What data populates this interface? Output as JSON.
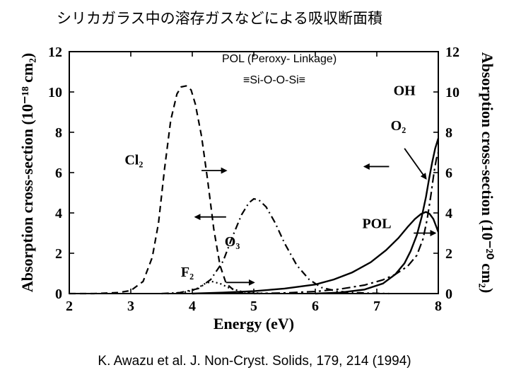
{
  "title": "シリカガラス中の溶存ガスなどによる吸収断面積",
  "annotation_box1": "POL (Peroxy- Linkage)",
  "annotation_box2": "≡Si-O-O-Si≡",
  "citation": "K. Awazu et al. J. Non-Cryst. Solids, 179, 214 (1994)",
  "chart": {
    "type": "line",
    "background_color": "#ffffff",
    "axis_color": "#000000",
    "axis_width": 2,
    "x": {
      "label": "Energy  (eV)",
      "lim": [
        2,
        8
      ],
      "ticks": [
        2,
        3,
        4,
        5,
        6,
        7,
        8
      ],
      "label_fontsize": 22,
      "tick_fontsize": 20
    },
    "y_left": {
      "label": "Absorption cross-section  (10⁻¹⁸ cm₂)",
      "lim": [
        0,
        12
      ],
      "ticks": [
        0,
        2,
        4,
        6,
        8,
        10,
        12
      ],
      "label_fontsize": 22,
      "tick_fontsize": 20
    },
    "y_right": {
      "label": "Absorption cross-section  (10⁻²⁰ cm₂)",
      "lim": [
        0,
        12
      ],
      "ticks": [
        0,
        2,
        4,
        6,
        8,
        10,
        12
      ],
      "label_fontsize": 22,
      "tick_fontsize": 20
    },
    "series": [
      {
        "name": "Cl2",
        "label": "Cl₂",
        "axis": "left",
        "style": "dashed",
        "dash": "9 6",
        "width": 2.2,
        "color": "#000000",
        "label_pos": {
          "x": 3.05,
          "y": 6.4
        },
        "points": [
          [
            2.0,
            0.0
          ],
          [
            2.4,
            0.0
          ],
          [
            2.8,
            0.05
          ],
          [
            3.0,
            0.15
          ],
          [
            3.2,
            0.6
          ],
          [
            3.35,
            1.8
          ],
          [
            3.45,
            3.5
          ],
          [
            3.55,
            6.2
          ],
          [
            3.65,
            8.6
          ],
          [
            3.75,
            9.9
          ],
          [
            3.82,
            10.25
          ],
          [
            3.9,
            10.3
          ],
          [
            3.98,
            10.1
          ],
          [
            4.05,
            9.4
          ],
          [
            4.15,
            7.8
          ],
          [
            4.25,
            5.6
          ],
          [
            4.35,
            3.2
          ],
          [
            4.45,
            1.4
          ],
          [
            4.55,
            0.5
          ],
          [
            4.7,
            0.1
          ],
          [
            4.9,
            0.02
          ],
          [
            5.1,
            0.0
          ]
        ]
      },
      {
        "name": "O3",
        "label": "O₃",
        "axis": "left",
        "style": "dashdot",
        "dash": "10 5 2 5",
        "width": 2.2,
        "color": "#000000",
        "label_pos": {
          "x": 4.65,
          "y": 2.35
        },
        "arrow": {
          "from": [
            4.55,
            3.8
          ],
          "to": [
            4.05,
            3.8
          ]
        },
        "points": [
          [
            3.5,
            0.0
          ],
          [
            3.8,
            0.05
          ],
          [
            4.1,
            0.25
          ],
          [
            4.3,
            0.7
          ],
          [
            4.5,
            1.6
          ],
          [
            4.65,
            2.8
          ],
          [
            4.8,
            3.9
          ],
          [
            4.92,
            4.5
          ],
          [
            5.0,
            4.7
          ],
          [
            5.08,
            4.65
          ],
          [
            5.2,
            4.3
          ],
          [
            5.35,
            3.5
          ],
          [
            5.5,
            2.5
          ],
          [
            5.7,
            1.4
          ],
          [
            5.9,
            0.7
          ],
          [
            6.1,
            0.3
          ],
          [
            6.35,
            0.12
          ],
          [
            6.6,
            0.05
          ],
          [
            6.9,
            0.02
          ],
          [
            7.2,
            0.0
          ]
        ]
      },
      {
        "name": "F2",
        "label": "F₂",
        "axis": "left",
        "style": "dotted",
        "dash": "2 4",
        "width": 2.2,
        "color": "#000000",
        "label_pos": {
          "x": 3.92,
          "y": 0.85
        },
        "arrow": {
          "from": [
            4.55,
            0.55
          ],
          "to": [
            5.0,
            0.55
          ]
        },
        "points": [
          [
            3.6,
            0.0
          ],
          [
            3.85,
            0.05
          ],
          [
            4.05,
            0.2
          ],
          [
            4.2,
            0.48
          ],
          [
            4.32,
            0.6
          ],
          [
            4.45,
            0.5
          ],
          [
            4.6,
            0.28
          ],
          [
            4.8,
            0.1
          ],
          [
            5.0,
            0.03
          ],
          [
            5.25,
            0.0
          ]
        ]
      },
      {
        "name": "POL",
        "label": "POL",
        "axis": "right",
        "style": "solid",
        "dash": "",
        "width": 2.4,
        "color": "#000000",
        "label_pos": {
          "x": 7.0,
          "y": 3.25
        },
        "arrow": {
          "from": [
            7.6,
            3.0
          ],
          "to": [
            7.95,
            3.0
          ]
        },
        "points": [
          [
            4.0,
            0.0
          ],
          [
            4.5,
            0.05
          ],
          [
            5.0,
            0.12
          ],
          [
            5.5,
            0.25
          ],
          [
            6.0,
            0.45
          ],
          [
            6.3,
            0.7
          ],
          [
            6.6,
            1.05
          ],
          [
            6.9,
            1.55
          ],
          [
            7.15,
            2.15
          ],
          [
            7.35,
            2.75
          ],
          [
            7.5,
            3.3
          ],
          [
            7.62,
            3.7
          ],
          [
            7.72,
            3.95
          ],
          [
            7.8,
            4.05
          ],
          [
            7.86,
            3.95
          ],
          [
            7.92,
            3.7
          ],
          [
            7.97,
            3.3
          ],
          [
            8.0,
            3.05
          ]
        ]
      },
      {
        "name": "O2",
        "label": "O₂",
        "axis": "right",
        "style": "dashdot",
        "dash": "12 5 3 5",
        "width": 2.2,
        "color": "#000000",
        "label_pos": {
          "x": 7.35,
          "y": 8.1
        },
        "arrow": {
          "from": [
            7.45,
            7.2
          ],
          "to": [
            7.8,
            5.7
          ]
        },
        "points": [
          [
            5.0,
            0.0
          ],
          [
            5.5,
            0.03
          ],
          [
            6.0,
            0.1
          ],
          [
            6.4,
            0.22
          ],
          [
            6.8,
            0.42
          ],
          [
            7.1,
            0.68
          ],
          [
            7.3,
            0.95
          ],
          [
            7.5,
            1.35
          ],
          [
            7.65,
            1.9
          ],
          [
            7.75,
            2.7
          ],
          [
            7.82,
            3.7
          ],
          [
            7.88,
            4.9
          ],
          [
            7.93,
            6.0
          ],
          [
            7.97,
            6.7
          ],
          [
            8.0,
            7.0
          ]
        ]
      },
      {
        "name": "OH",
        "label": "OH",
        "axis": "right",
        "style": "solid",
        "dash": "",
        "width": 2.4,
        "color": "#000000",
        "label_pos": {
          "x": 7.45,
          "y": 9.85
        },
        "points": [
          [
            6.0,
            0.0
          ],
          [
            6.4,
            0.05
          ],
          [
            6.8,
            0.2
          ],
          [
            7.1,
            0.5
          ],
          [
            7.3,
            0.95
          ],
          [
            7.45,
            1.5
          ],
          [
            7.55,
            2.1
          ],
          [
            7.65,
            2.9
          ],
          [
            7.73,
            3.8
          ],
          [
            7.8,
            4.8
          ],
          [
            7.85,
            5.7
          ],
          [
            7.9,
            6.5
          ],
          [
            7.95,
            7.2
          ],
          [
            8.0,
            7.7
          ]
        ]
      }
    ],
    "extra_arrows": [
      {
        "from": [
          4.15,
          6.1
        ],
        "to": [
          4.55,
          6.1
        ]
      },
      {
        "from": [
          7.2,
          6.3
        ],
        "to": [
          6.8,
          6.3
        ]
      }
    ]
  }
}
